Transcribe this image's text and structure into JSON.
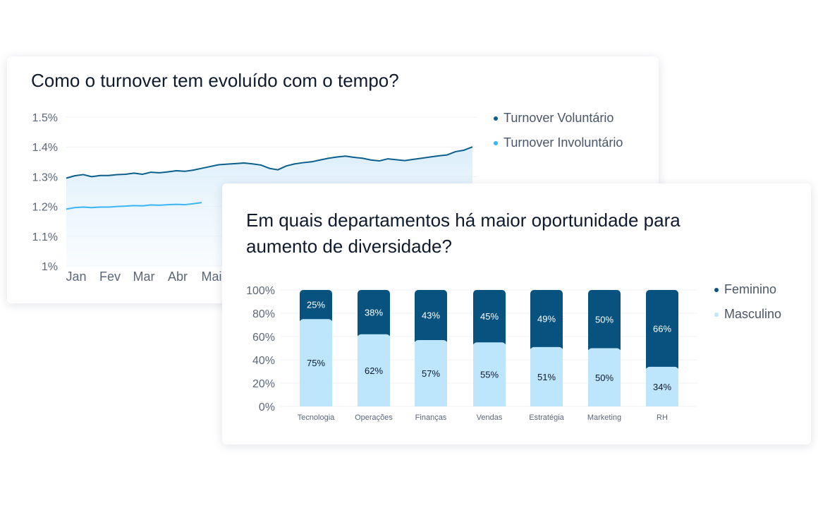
{
  "turnover_card": {
    "title": "Como o turnover tem evoluído com o tempo?",
    "legend": [
      {
        "label": "Turnover Voluntário",
        "color": "#0b5f8c"
      },
      {
        "label": "Turnover Involuntário",
        "color": "#38b6f5"
      }
    ]
  },
  "diversity_card": {
    "title": "Em quais departamentos há maior oportunidade para aumento de diversidade?",
    "legend": [
      {
        "label": "Feminino",
        "color": "#08527f"
      },
      {
        "label": "Masculino",
        "color": "#bde5fb"
      }
    ]
  },
  "chart_data": [
    {
      "type": "line",
      "title": "Como o turnover tem evoluído com o tempo?",
      "xlabel": "",
      "ylabel": "",
      "y_tick_labels": [
        "1%",
        "1.1%",
        "1.2%",
        "1.3%",
        "1.4%",
        "1.5%"
      ],
      "ylim": [
        1.0,
        1.5
      ],
      "x_tick_labels": [
        "Jan",
        "Fev",
        "Mar",
        "Abr",
        "Mai"
      ],
      "grid": true,
      "legend_position": "right",
      "series": [
        {
          "name": "Turnover Voluntário",
          "color": "#0b5f8c",
          "values": [
            1.295,
            1.303,
            1.307,
            1.3,
            1.304,
            1.304,
            1.307,
            1.308,
            1.312,
            1.308,
            1.315,
            1.313,
            1.316,
            1.32,
            1.318,
            1.322,
            1.328,
            1.334,
            1.34,
            1.342,
            1.344,
            1.346,
            1.343,
            1.339,
            1.328,
            1.323,
            1.336,
            1.343,
            1.347,
            1.35,
            1.356,
            1.362,
            1.366,
            1.369,
            1.365,
            1.362,
            1.356,
            1.353,
            1.36,
            1.357,
            1.354,
            1.358,
            1.362,
            1.366,
            1.37,
            1.373,
            1.384,
            1.389,
            1.4
          ]
        },
        {
          "name": "Turnover Involuntário",
          "color": "#38b6f5",
          "values": [
            1.191,
            1.196,
            1.198,
            1.196,
            1.198,
            1.198,
            1.2,
            1.201,
            1.203,
            1.202,
            1.205,
            1.204,
            1.206,
            1.207,
            1.206,
            1.209,
            1.213
          ]
        }
      ]
    },
    {
      "type": "bar",
      "stacked": true,
      "title": "Em quais departamentos há maior oportunidade para aumento de diversidade?",
      "xlabel": "",
      "ylabel": "",
      "ylim": [
        0,
        100
      ],
      "y_tick_labels": [
        "0%",
        "20%",
        "40%",
        "60%",
        "80%",
        "100%"
      ],
      "grid": true,
      "legend_position": "top-right",
      "categories": [
        "Tecnologia",
        "Operações",
        "Finanças",
        "Vendas",
        "Estratégia",
        "Marketing",
        "RH"
      ],
      "series": [
        {
          "name": "Feminino",
          "color": "#08527f",
          "values": [
            25,
            38,
            43,
            45,
            49,
            50,
            66
          ],
          "labels": [
            "25%",
            "38%",
            "43%",
            "45%",
            "49%",
            "50%",
            "66%"
          ]
        },
        {
          "name": "Masculino",
          "color": "#bde5fb",
          "values": [
            75,
            62,
            57,
            55,
            51,
            50,
            34
          ],
          "labels": [
            "75%",
            "62%",
            "57%",
            "55%",
            "51%",
            "50%",
            "34%"
          ]
        }
      ]
    }
  ]
}
